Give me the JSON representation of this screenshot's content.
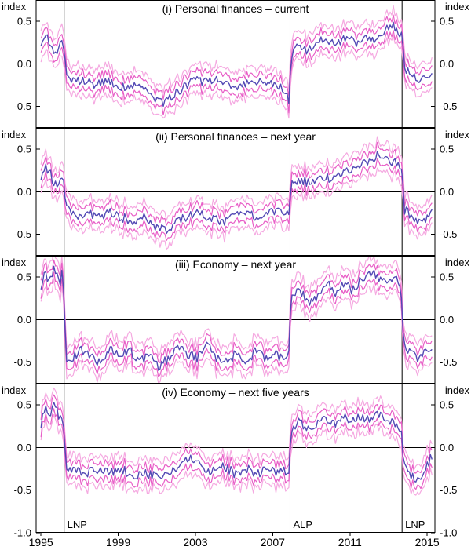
{
  "chart_data": {
    "type": "line",
    "ylabel": "index",
    "x_ticks": [
      1995,
      1999,
      2003,
      2007,
      2011,
      2015
    ],
    "x_range": [
      1994.75,
      2015.4
    ],
    "election_lines": [
      {
        "x": 1996.2,
        "label": "LNP"
      },
      {
        "x": 2007.9,
        "label": "ALP"
      },
      {
        "x": 2013.7,
        "label": "LNP"
      }
    ],
    "colors": {
      "center": "#5248b4",
      "inner_band": "#e85ec7",
      "outer_band": "#f5a9e1",
      "frame": "#000000"
    },
    "band_inner": 0.09,
    "band_outer": 0.17,
    "noise": 0.055,
    "seed": 42,
    "legend": "center line with inner and outer confidence bands",
    "panels": [
      {
        "title": "(i) Personal finances – current",
        "y_ticks": [
          0.5,
          0.0,
          -0.5
        ],
        "y_range": [
          -0.75,
          0.75
        ],
        "keypoints": [
          [
            1995.0,
            0.2
          ],
          [
            1995.2,
            0.35
          ],
          [
            1995.5,
            0.25
          ],
          [
            1995.75,
            0.1
          ],
          [
            1996.0,
            0.3
          ],
          [
            1996.18,
            0.15
          ],
          [
            1996.3,
            -0.1
          ],
          [
            1996.6,
            -0.2
          ],
          [
            1997.2,
            -0.18
          ],
          [
            1997.8,
            -0.25
          ],
          [
            1998.4,
            -0.2
          ],
          [
            1999.0,
            -0.28
          ],
          [
            1999.6,
            -0.25
          ],
          [
            2000.2,
            -0.3
          ],
          [
            2000.8,
            -0.38
          ],
          [
            2001.3,
            -0.45
          ],
          [
            2001.8,
            -0.38
          ],
          [
            2002.4,
            -0.28
          ],
          [
            2003.0,
            -0.15
          ],
          [
            2003.5,
            -0.22
          ],
          [
            2004.0,
            -0.18
          ],
          [
            2004.6,
            -0.25
          ],
          [
            2005.2,
            -0.3
          ],
          [
            2005.8,
            -0.22
          ],
          [
            2006.4,
            -0.18
          ],
          [
            2007.0,
            -0.25
          ],
          [
            2007.5,
            -0.3
          ],
          [
            2007.85,
            -0.42
          ],
          [
            2007.95,
            0.1
          ],
          [
            2008.3,
            0.2
          ],
          [
            2008.8,
            0.15
          ],
          [
            2009.3,
            0.25
          ],
          [
            2009.8,
            0.3
          ],
          [
            2010.3,
            0.22
          ],
          [
            2010.8,
            0.3
          ],
          [
            2011.3,
            0.25
          ],
          [
            2011.8,
            0.32
          ],
          [
            2012.3,
            0.3
          ],
          [
            2012.8,
            0.38
          ],
          [
            2013.2,
            0.45
          ],
          [
            2013.6,
            0.35
          ],
          [
            2013.72,
            0.3
          ],
          [
            2013.8,
            -0.05
          ],
          [
            2014.1,
            -0.12
          ],
          [
            2014.5,
            -0.2
          ],
          [
            2014.9,
            -0.15
          ],
          [
            2015.25,
            -0.08
          ]
        ]
      },
      {
        "title": "(ii) Personal finances – next year",
        "y_ticks": [
          0.5,
          0.0,
          -0.5
        ],
        "y_range": [
          -0.75,
          0.75
        ],
        "keypoints": [
          [
            1995.0,
            0.15
          ],
          [
            1995.2,
            0.3
          ],
          [
            1995.5,
            0.2
          ],
          [
            1995.8,
            0.05
          ],
          [
            1996.0,
            0.2
          ],
          [
            1996.18,
            0.1
          ],
          [
            1996.35,
            -0.2
          ],
          [
            1996.8,
            -0.3
          ],
          [
            1997.4,
            -0.25
          ],
          [
            1998.0,
            -0.3
          ],
          [
            1998.6,
            -0.25
          ],
          [
            1999.2,
            -0.3
          ],
          [
            1999.8,
            -0.35
          ],
          [
            2000.4,
            -0.3
          ],
          [
            2001.0,
            -0.42
          ],
          [
            2001.5,
            -0.45
          ],
          [
            2002.0,
            -0.35
          ],
          [
            2002.6,
            -0.3
          ],
          [
            2003.2,
            -0.25
          ],
          [
            2003.8,
            -0.3
          ],
          [
            2004.4,
            -0.35
          ],
          [
            2005.0,
            -0.3
          ],
          [
            2005.6,
            -0.25
          ],
          [
            2006.2,
            -0.3
          ],
          [
            2006.8,
            -0.25
          ],
          [
            2007.4,
            -0.2
          ],
          [
            2007.85,
            -0.25
          ],
          [
            2007.95,
            0.1
          ],
          [
            2008.4,
            0.15
          ],
          [
            2008.9,
            0.1
          ],
          [
            2009.4,
            0.2
          ],
          [
            2009.9,
            0.15
          ],
          [
            2010.4,
            0.22
          ],
          [
            2010.9,
            0.25
          ],
          [
            2011.4,
            0.3
          ],
          [
            2011.9,
            0.35
          ],
          [
            2012.4,
            0.42
          ],
          [
            2012.8,
            0.45
          ],
          [
            2013.2,
            0.35
          ],
          [
            2013.6,
            0.3
          ],
          [
            2013.72,
            0.25
          ],
          [
            2013.8,
            -0.2
          ],
          [
            2014.2,
            -0.3
          ],
          [
            2014.6,
            -0.35
          ],
          [
            2015.0,
            -0.3
          ],
          [
            2015.25,
            -0.25
          ]
        ]
      },
      {
        "title": "(iii) Economy – next year",
        "y_ticks": [
          0.5,
          0.0,
          -0.5
        ],
        "y_range": [
          -0.75,
          0.75
        ],
        "keypoints": [
          [
            1995.0,
            0.4
          ],
          [
            1995.2,
            0.55
          ],
          [
            1995.45,
            0.45
          ],
          [
            1995.7,
            0.6
          ],
          [
            1995.95,
            0.4
          ],
          [
            1996.1,
            0.55
          ],
          [
            1996.2,
            0.3
          ],
          [
            1996.3,
            -0.55
          ],
          [
            1996.6,
            -0.45
          ],
          [
            1997.1,
            -0.35
          ],
          [
            1997.6,
            -0.45
          ],
          [
            1998.1,
            -0.5
          ],
          [
            1998.6,
            -0.35
          ],
          [
            1999.1,
            -0.45
          ],
          [
            1999.6,
            -0.35
          ],
          [
            2000.1,
            -0.5
          ],
          [
            2000.6,
            -0.42
          ],
          [
            2001.1,
            -0.55
          ],
          [
            2001.6,
            -0.45
          ],
          [
            2002.1,
            -0.3
          ],
          [
            2002.6,
            -0.4
          ],
          [
            2003.1,
            -0.45
          ],
          [
            2003.6,
            -0.3
          ],
          [
            2004.1,
            -0.45
          ],
          [
            2004.6,
            -0.5
          ],
          [
            2005.1,
            -0.4
          ],
          [
            2005.6,
            -0.48
          ],
          [
            2006.1,
            -0.38
          ],
          [
            2006.6,
            -0.45
          ],
          [
            2007.1,
            -0.4
          ],
          [
            2007.5,
            -0.45
          ],
          [
            2007.85,
            -0.35
          ],
          [
            2007.95,
            0.25
          ],
          [
            2008.3,
            0.35
          ],
          [
            2008.7,
            0.25
          ],
          [
            2009.1,
            0.2
          ],
          [
            2009.5,
            0.35
          ],
          [
            2009.9,
            0.4
          ],
          [
            2010.3,
            0.3
          ],
          [
            2010.7,
            0.45
          ],
          [
            2011.1,
            0.35
          ],
          [
            2011.5,
            0.45
          ],
          [
            2011.9,
            0.5
          ],
          [
            2012.3,
            0.55
          ],
          [
            2012.7,
            0.45
          ],
          [
            2013.1,
            0.5
          ],
          [
            2013.5,
            0.45
          ],
          [
            2013.65,
            0.35
          ],
          [
            2013.78,
            -0.3
          ],
          [
            2014.1,
            -0.4
          ],
          [
            2014.5,
            -0.45
          ],
          [
            2014.9,
            -0.38
          ],
          [
            2015.25,
            -0.3
          ]
        ]
      },
      {
        "title": "(iv) Economy – next five years",
        "y_ticks": [
          0.5,
          0.0,
          -0.5,
          -1.0
        ],
        "y_range": [
          -1.0,
          0.75
        ],
        "keypoints": [
          [
            1995.0,
            0.25
          ],
          [
            1995.2,
            0.5
          ],
          [
            1995.45,
            0.35
          ],
          [
            1995.7,
            0.55
          ],
          [
            1995.95,
            0.3
          ],
          [
            1996.1,
            0.4
          ],
          [
            1996.2,
            0.15
          ],
          [
            1996.35,
            -0.3
          ],
          [
            1996.8,
            -0.25
          ],
          [
            1997.4,
            -0.3
          ],
          [
            1998.0,
            -0.25
          ],
          [
            1998.6,
            -0.3
          ],
          [
            1999.2,
            -0.25
          ],
          [
            1999.8,
            -0.35
          ],
          [
            2000.4,
            -0.3
          ],
          [
            2001.0,
            -0.35
          ],
          [
            2001.6,
            -0.3
          ],
          [
            2002.2,
            -0.2
          ],
          [
            2002.7,
            -0.12
          ],
          [
            2003.2,
            -0.2
          ],
          [
            2003.8,
            -0.28
          ],
          [
            2004.4,
            -0.22
          ],
          [
            2005.0,
            -0.3
          ],
          [
            2005.6,
            -0.25
          ],
          [
            2006.2,
            -0.3
          ],
          [
            2006.8,
            -0.25
          ],
          [
            2007.4,
            -0.3
          ],
          [
            2007.85,
            -0.25
          ],
          [
            2007.95,
            0.2
          ],
          [
            2008.3,
            0.3
          ],
          [
            2008.7,
            0.25
          ],
          [
            2009.1,
            0.2
          ],
          [
            2009.5,
            0.35
          ],
          [
            2009.9,
            0.3
          ],
          [
            2010.3,
            0.25
          ],
          [
            2010.7,
            0.35
          ],
          [
            2011.1,
            0.3
          ],
          [
            2011.5,
            0.38
          ],
          [
            2011.9,
            0.32
          ],
          [
            2012.3,
            0.4
          ],
          [
            2012.7,
            0.35
          ],
          [
            2013.1,
            0.3
          ],
          [
            2013.5,
            0.25
          ],
          [
            2013.65,
            0.2
          ],
          [
            2013.78,
            -0.2
          ],
          [
            2014.1,
            -0.3
          ],
          [
            2014.5,
            -0.38
          ],
          [
            2014.9,
            -0.25
          ],
          [
            2015.25,
            -0.1
          ]
        ]
      }
    ]
  }
}
